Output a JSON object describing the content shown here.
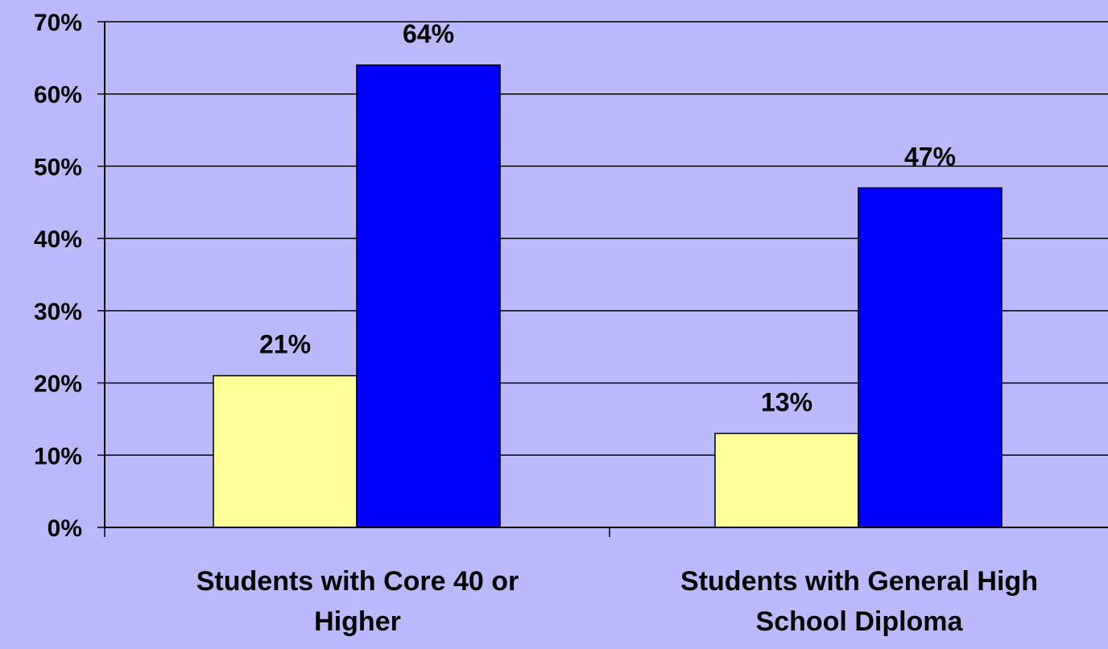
{
  "chart_data": {
    "type": "bar",
    "categories": [
      [
        "Students with Core 40 or",
        "Higher"
      ],
      [
        "Students with General High",
        "School Diploma"
      ]
    ],
    "series": [
      {
        "values": [
          21,
          13
        ],
        "color": "#ffff99"
      },
      {
        "values": [
          64,
          47
        ],
        "color": "#0000ff"
      }
    ],
    "data_labels": [
      [
        "21%",
        "13%"
      ],
      [
        "64%",
        "47%"
      ]
    ],
    "ylim": [
      0,
      70
    ],
    "yticks": [
      0,
      10,
      20,
      30,
      40,
      50,
      60,
      70
    ],
    "ytick_labels": [
      "0%",
      "10%",
      "20%",
      "30%",
      "40%",
      "50%",
      "60%",
      "70%"
    ],
    "grid": true,
    "legend": "none",
    "background_color": "#b9b9fb"
  }
}
